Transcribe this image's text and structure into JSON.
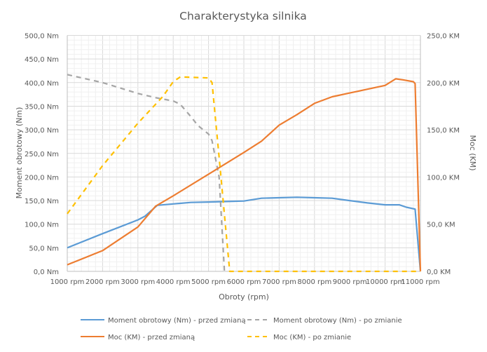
{
  "chart_data": {
    "type": "line",
    "title": "Charakterystyka silnika",
    "xlabel": "Obroty (rpm)",
    "ylabel_left": "Moment obrotowy (Nm)",
    "ylabel_right": "Moc (KM)",
    "xlim": [
      1000,
      11000
    ],
    "ylim_left": [
      0,
      500
    ],
    "ylim_right": [
      0,
      250
    ],
    "grid": "major and minor",
    "legend_position": "bottom",
    "x_ticks": [
      "1000 rpm",
      "2000 rpm",
      "3000 rpm",
      "4000 rpm",
      "5000 rpm",
      "6000 rpm",
      "7000 rpm",
      "8000 rpm",
      "9000 rpm",
      "10000 rpm",
      "11000 rpm"
    ],
    "y_left_ticks": [
      "0,0 Nm",
      "50,0 Nm",
      "100,0 Nm",
      "150,0 Nm",
      "200,0 Nm",
      "250,0 Nm",
      "300,0 Nm",
      "350,0 Nm",
      "400,0 Nm",
      "450,0 Nm",
      "500,0 Nm"
    ],
    "y_right_ticks": [
      "0,0 KM",
      "50,0 KM",
      "100,0 KM",
      "150,0 KM",
      "200,0 KM",
      "250,0 KM"
    ],
    "series": [
      {
        "name": "Moment obrotowy (Nm) - przed zmianą",
        "axis": "left",
        "color": "#5b9bd5",
        "dashed": false,
        "points": [
          [
            1000,
            50
          ],
          [
            2000,
            80
          ],
          [
            3000,
            109
          ],
          [
            3200,
            117
          ],
          [
            3550,
            140
          ],
          [
            4000,
            143
          ],
          [
            4500,
            146
          ],
          [
            5000,
            147
          ],
          [
            5500,
            148
          ],
          [
            6000,
            149
          ],
          [
            6500,
            155
          ],
          [
            7000,
            156
          ],
          [
            7500,
            157
          ],
          [
            8000,
            156
          ],
          [
            8500,
            155
          ],
          [
            9000,
            150
          ],
          [
            9500,
            145
          ],
          [
            10000,
            141
          ],
          [
            10400,
            141
          ],
          [
            10600,
            136
          ],
          [
            10850,
            132
          ],
          [
            11000,
            0
          ]
        ]
      },
      {
        "name": "Moment obrotowy (Nm) - po zmianie",
        "axis": "left",
        "color": "#a5a5a5",
        "dashed": true,
        "points": [
          [
            1000,
            417
          ],
          [
            2000,
            400
          ],
          [
            3000,
            377
          ],
          [
            3500,
            368
          ],
          [
            4000,
            361
          ],
          [
            4200,
            354
          ],
          [
            4500,
            328
          ],
          [
            4700,
            309
          ],
          [
            5000,
            291
          ],
          [
            5100,
            277
          ],
          [
            5300,
            200
          ],
          [
            5450,
            0
          ]
        ]
      },
      {
        "name": "Moc (KM) - przed zmianą",
        "axis": "right",
        "color": "#ed7d31",
        "dashed": false,
        "points": [
          [
            1000,
            7
          ],
          [
            2000,
            22
          ],
          [
            3000,
            47
          ],
          [
            3500,
            69
          ],
          [
            4000,
            80
          ],
          [
            5000,
            103
          ],
          [
            6000,
            126
          ],
          [
            6500,
            138
          ],
          [
            7000,
            155
          ],
          [
            7500,
            166
          ],
          [
            8000,
            178
          ],
          [
            8500,
            185
          ],
          [
            9000,
            189
          ],
          [
            9500,
            193
          ],
          [
            10000,
            197
          ],
          [
            10300,
            204
          ],
          [
            10500,
            203
          ],
          [
            10800,
            201
          ],
          [
            10850,
            199
          ],
          [
            11000,
            0
          ]
        ]
      },
      {
        "name": "Moc (KM) - po zmianie",
        "axis": "right",
        "color": "#ffc000",
        "dashed": true,
        "points": [
          [
            1000,
            61
          ],
          [
            2000,
            112
          ],
          [
            3000,
            157
          ],
          [
            3700,
            185
          ],
          [
            4000,
            201
          ],
          [
            4200,
            206
          ],
          [
            5000,
            205
          ],
          [
            5100,
            200
          ],
          [
            5300,
            121
          ],
          [
            5600,
            0
          ],
          [
            11000,
            0
          ]
        ]
      }
    ]
  }
}
